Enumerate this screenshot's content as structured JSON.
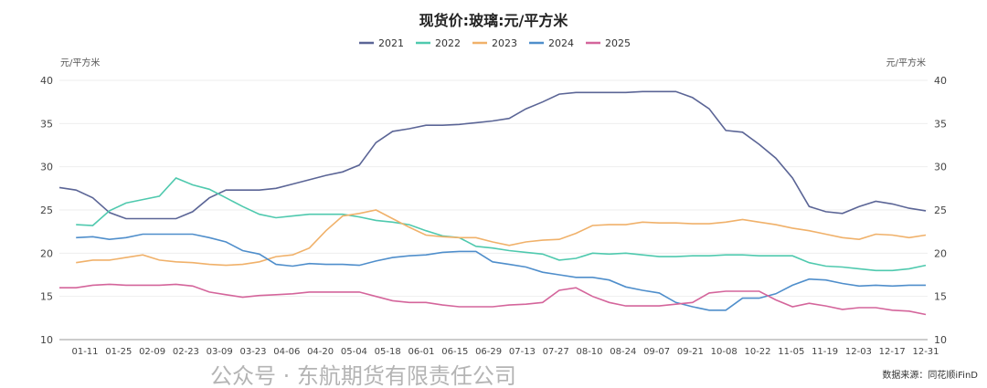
{
  "chart_data": {
    "type": "line",
    "title": "现货价:玻璃:元/平方米",
    "ylabel_left": "元/平方米",
    "ylabel_right": "元/平方米",
    "ylim": [
      10,
      40
    ],
    "yticks": [
      10,
      15,
      20,
      25,
      30,
      35,
      40
    ],
    "grid": true,
    "legend_position": "top-center",
    "xtick_labels": [
      "01-11",
      "01-25",
      "02-09",
      "02-23",
      "03-09",
      "03-23",
      "04-06",
      "04-20",
      "05-04",
      "05-18",
      "06-01",
      "06-15",
      "06-29",
      "07-13",
      "07-27",
      "08-10",
      "08-24",
      "09-07",
      "09-21",
      "10-08",
      "10-22",
      "11-05",
      "11-19",
      "12-03",
      "12-17",
      "12-31"
    ],
    "series": [
      {
        "name": "2021",
        "color": "#5b6596",
        "values": [
          27.6,
          27.3,
          26.4,
          24.7,
          24,
          24,
          24,
          24,
          24.8,
          26.4,
          27.3,
          27.3,
          27.3,
          27.5,
          28,
          28.5,
          29,
          29.4,
          30.2,
          32.8,
          34.1,
          34.4,
          34.8,
          34.8,
          34.9,
          35.1,
          35.3,
          35.6,
          36.7,
          37.5,
          38.4,
          38.6,
          38.6,
          38.6,
          38.6,
          38.7,
          38.7,
          38.7,
          38,
          36.7,
          34.2,
          34,
          32.6,
          31,
          28.7,
          25.4,
          24.8,
          24.6,
          25.4,
          26,
          25.7,
          25.2,
          24.9
        ]
      },
      {
        "name": "2022",
        "color": "#4fc9ae",
        "values": [
          null,
          23.3,
          23.2,
          24.9,
          25.8,
          26.2,
          26.6,
          28.7,
          27.9,
          27.4,
          26.4,
          25.4,
          24.5,
          24.1,
          24.3,
          24.5,
          24.5,
          24.5,
          24.2,
          23.8,
          23.6,
          23.3,
          22.6,
          22,
          21.8,
          20.8,
          20.6,
          20.3,
          20.1,
          19.9,
          19.2,
          19.4,
          20,
          19.9,
          20,
          19.8,
          19.6,
          19.6,
          19.7,
          19.7,
          19.8,
          19.8,
          19.7,
          19.7,
          19.7,
          18.9,
          18.5,
          18.4,
          18.2,
          18,
          18,
          18.2,
          18.6
        ]
      },
      {
        "name": "2023",
        "color": "#f0b16a",
        "values": [
          null,
          18.9,
          19.2,
          19.2,
          19.5,
          19.8,
          19.2,
          19,
          18.9,
          18.7,
          18.6,
          18.7,
          19,
          19.6,
          19.8,
          20.6,
          22.6,
          24.3,
          24.6,
          25,
          24,
          23,
          22.1,
          21.9,
          21.8,
          21.8,
          21.3,
          20.9,
          21.3,
          21.5,
          21.6,
          22.3,
          23.2,
          23.3,
          23.3,
          23.6,
          23.5,
          23.5,
          23.4,
          23.4,
          23.6,
          23.9,
          23.6,
          23.3,
          22.9,
          22.6,
          22.2,
          21.8,
          21.6,
          22.2,
          22.1,
          21.8,
          22.1
        ]
      },
      {
        "name": "2024",
        "color": "#4f8ecb",
        "values": [
          null,
          21.8,
          21.9,
          21.6,
          21.8,
          22.2,
          22.2,
          22.2,
          22.2,
          21.8,
          21.3,
          20.3,
          19.9,
          18.7,
          18.5,
          18.8,
          18.7,
          18.7,
          18.6,
          19.1,
          19.5,
          19.7,
          19.8,
          20.1,
          20.2,
          20.2,
          19,
          18.7,
          18.4,
          17.8,
          17.5,
          17.2,
          17.2,
          16.9,
          16.1,
          15.7,
          15.4,
          14.3,
          13.8,
          13.4,
          13.4,
          14.8,
          14.8,
          15.3,
          16.3,
          17,
          16.9,
          16.5,
          16.2,
          16.3,
          16.2,
          16.3,
          16.3
        ]
      },
      {
        "name": "2025",
        "color": "#d4659b",
        "values": [
          16,
          16,
          16.3,
          16.4,
          16.3,
          16.3,
          16.3,
          16.4,
          16.2,
          15.5,
          15.2,
          14.9,
          15.1,
          15.2,
          15.3,
          15.5,
          15.5,
          15.5,
          15.5,
          15,
          14.5,
          14.3,
          14.3,
          14,
          13.8,
          13.8,
          13.8,
          14,
          14.1,
          14.3,
          15.7,
          16,
          15,
          14.3,
          13.9,
          13.9,
          13.9,
          14.1,
          14.3,
          15.4,
          15.6,
          15.6,
          15.6,
          14.6,
          13.8,
          14.2,
          13.9,
          13.5,
          13.7,
          13.7,
          13.4,
          13.3,
          12.9
        ]
      }
    ],
    "source": "数据来源：同花顺iFinD",
    "watermark": "公众号 · 东航期货有限责任公司"
  }
}
